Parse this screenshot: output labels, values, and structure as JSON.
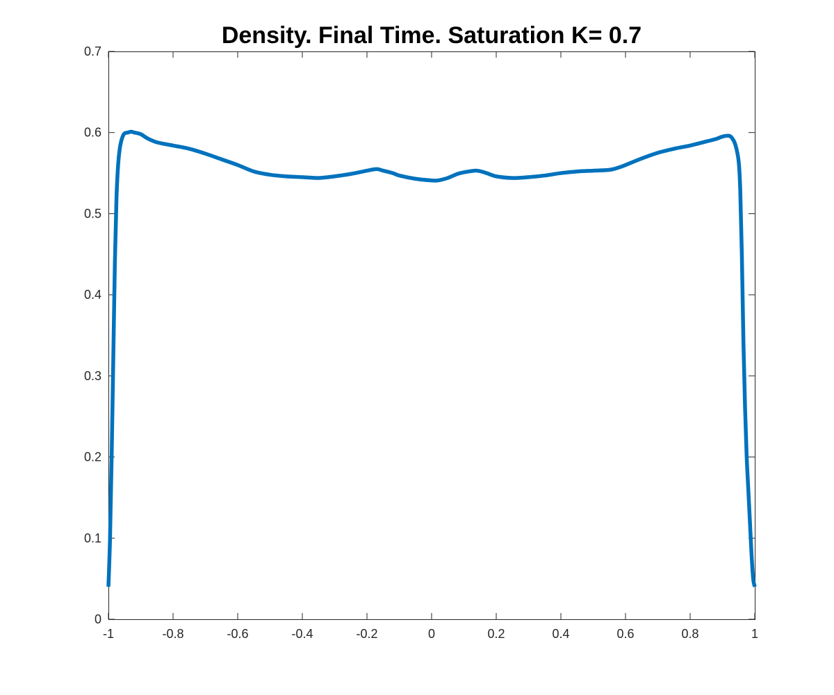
{
  "chart_data": {
    "type": "line",
    "title": "Density. Final Time. Saturation K= 0.7",
    "xlabel": "",
    "ylabel": "",
    "xlim": [
      -1,
      1
    ],
    "ylim": [
      0,
      0.7
    ],
    "grid": false,
    "x_ticks": [
      "-1",
      "-0.8",
      "-0.6",
      "-0.4",
      "-0.2",
      "0",
      "0.2",
      "0.4",
      "0.6",
      "0.8",
      "1"
    ],
    "y_ticks": [
      "0",
      "0.1",
      "0.2",
      "0.3",
      "0.4",
      "0.5",
      "0.6",
      "0.7"
    ],
    "series": [
      {
        "color": "#0072BD",
        "x": [
          -1.0,
          -0.995,
          -0.99,
          -0.985,
          -0.98,
          -0.975,
          -0.97,
          -0.965,
          -0.96,
          -0.955,
          -0.95,
          -0.94,
          -0.93,
          -0.92,
          -0.9,
          -0.88,
          -0.85,
          -0.8,
          -0.75,
          -0.7,
          -0.65,
          -0.6,
          -0.55,
          -0.5,
          -0.45,
          -0.4,
          -0.35,
          -0.3,
          -0.25,
          -0.2,
          -0.17,
          -0.15,
          -0.12,
          -0.1,
          -0.05,
          0.0,
          0.02,
          0.05,
          0.08,
          0.1,
          0.14,
          0.17,
          0.2,
          0.25,
          0.3,
          0.35,
          0.4,
          0.45,
          0.5,
          0.55,
          0.58,
          0.6,
          0.65,
          0.7,
          0.75,
          0.8,
          0.85,
          0.88,
          0.9,
          0.92,
          0.93,
          0.94,
          0.95,
          0.955,
          0.96,
          0.965,
          0.97,
          0.975,
          0.98,
          0.985,
          0.99,
          0.995,
          1.0
        ],
        "y": [
          0.04,
          0.1,
          0.2,
          0.32,
          0.44,
          0.52,
          0.56,
          0.58,
          0.59,
          0.596,
          0.599,
          0.6,
          0.601,
          0.6,
          0.598,
          0.593,
          0.588,
          0.584,
          0.58,
          0.574,
          0.567,
          0.56,
          0.552,
          0.548,
          0.546,
          0.545,
          0.544,
          0.546,
          0.549,
          0.553,
          0.555,
          0.553,
          0.55,
          0.547,
          0.543,
          0.541,
          0.541,
          0.544,
          0.549,
          0.551,
          0.553,
          0.55,
          0.546,
          0.544,
          0.545,
          0.547,
          0.55,
          0.552,
          0.553,
          0.554,
          0.557,
          0.56,
          0.568,
          0.575,
          0.58,
          0.584,
          0.589,
          0.592,
          0.595,
          0.596,
          0.593,
          0.585,
          0.565,
          0.53,
          0.45,
          0.34,
          0.26,
          0.2,
          0.16,
          0.12,
          0.08,
          0.05,
          0.04
        ]
      }
    ]
  }
}
